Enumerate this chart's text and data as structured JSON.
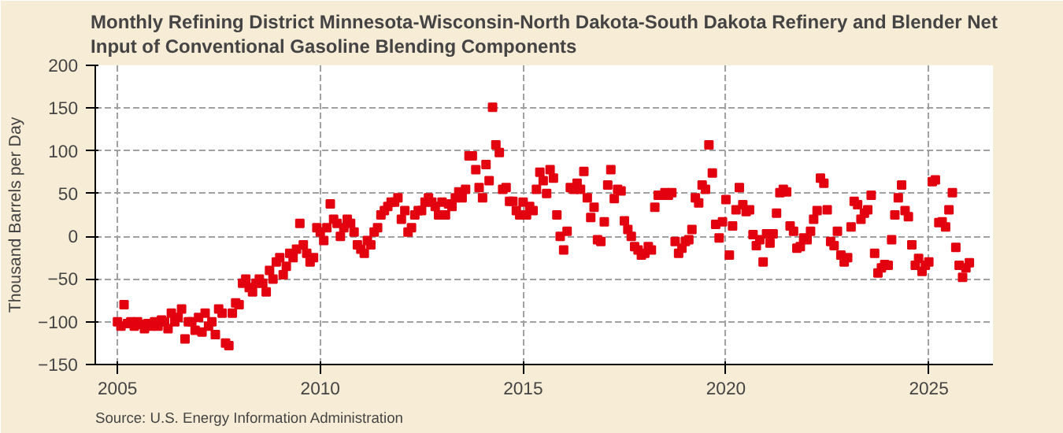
{
  "chart_data": {
    "type": "scatter",
    "title": "Monthly Refining District Minnesota-Wisconsin-North Dakota-South Dakota Refinery and Blender Net Input of Conventional Gasoline Blending Components",
    "ylabel": "Thousand Barrels per Day",
    "annotations": [
      "Source: U.S. Energy Information Administration"
    ],
    "x": [
      "2005-01",
      "2005-02",
      "2005-03",
      "2005-04",
      "2005-05",
      "2005-06",
      "2005-07",
      "2005-08",
      "2005-09",
      "2005-10",
      "2005-11",
      "2005-12",
      "2006-01",
      "2006-02",
      "2006-03",
      "2006-04",
      "2006-05",
      "2006-06",
      "2006-07",
      "2006-08",
      "2006-09",
      "2006-10",
      "2006-11",
      "2006-12",
      "2007-01",
      "2007-02",
      "2007-03",
      "2007-04",
      "2007-05",
      "2007-06",
      "2007-07",
      "2007-08",
      "2007-09",
      "2007-10",
      "2007-11",
      "2007-12",
      "2008-01",
      "2008-02",
      "2008-03",
      "2008-04",
      "2008-05",
      "2008-06",
      "2008-07",
      "2008-08",
      "2008-09",
      "2008-10",
      "2008-11",
      "2008-12",
      "2009-01",
      "2009-02",
      "2009-03",
      "2009-04",
      "2009-05",
      "2009-06",
      "2009-07",
      "2009-08",
      "2009-09",
      "2009-10",
      "2009-11",
      "2009-12",
      "2010-01",
      "2010-02",
      "2010-03",
      "2010-04",
      "2010-05",
      "2010-06",
      "2010-07",
      "2010-08",
      "2010-09",
      "2010-10",
      "2010-11",
      "2010-12",
      "2011-01",
      "2011-02",
      "2011-03",
      "2011-04",
      "2011-05",
      "2011-06",
      "2011-07",
      "2011-08",
      "2011-09",
      "2011-10",
      "2011-11",
      "2011-12",
      "2012-01",
      "2012-02",
      "2012-03",
      "2012-04",
      "2012-05",
      "2012-06",
      "2012-07",
      "2012-08",
      "2012-09",
      "2012-10",
      "2012-11",
      "2012-12",
      "2013-01",
      "2013-02",
      "2013-03",
      "2013-04",
      "2013-05",
      "2013-06",
      "2013-07",
      "2013-08",
      "2013-09",
      "2013-10",
      "2013-11",
      "2013-12",
      "2014-01",
      "2014-02",
      "2014-03",
      "2014-04",
      "2014-05",
      "2014-06",
      "2014-07",
      "2014-08",
      "2014-09",
      "2014-10",
      "2014-11",
      "2014-12",
      "2015-01",
      "2015-02",
      "2015-03",
      "2015-04",
      "2015-05",
      "2015-06",
      "2015-07",
      "2015-08",
      "2015-09",
      "2015-10",
      "2015-11",
      "2015-12",
      "2016-01",
      "2016-02",
      "2016-03",
      "2016-04",
      "2016-05",
      "2016-06",
      "2016-07",
      "2016-08",
      "2016-09",
      "2016-10",
      "2016-11",
      "2016-12",
      "2017-01",
      "2017-02",
      "2017-03",
      "2017-04",
      "2017-05",
      "2017-06",
      "2017-07",
      "2017-08",
      "2017-09",
      "2017-10",
      "2017-11",
      "2017-12",
      "2018-01",
      "2018-02",
      "2018-03",
      "2018-04",
      "2018-05",
      "2018-06",
      "2018-07",
      "2018-08",
      "2018-09",
      "2018-10",
      "2018-11",
      "2018-12",
      "2019-01",
      "2019-02",
      "2019-03",
      "2019-04",
      "2019-05",
      "2019-06",
      "2019-07",
      "2019-08",
      "2019-09",
      "2019-10",
      "2019-11",
      "2019-12",
      "2020-01",
      "2020-02",
      "2020-03",
      "2020-04",
      "2020-05",
      "2020-06",
      "2020-07",
      "2020-08",
      "2020-09",
      "2020-10",
      "2020-11",
      "2020-12",
      "2021-01",
      "2021-02",
      "2021-03",
      "2021-04",
      "2021-05",
      "2021-06",
      "2021-07",
      "2021-08",
      "2021-09",
      "2021-10",
      "2021-11",
      "2021-12",
      "2022-01",
      "2022-02",
      "2022-03",
      "2022-04",
      "2022-05",
      "2022-06",
      "2022-07",
      "2022-08",
      "2022-09",
      "2022-10",
      "2022-11",
      "2022-12",
      "2023-01",
      "2023-02",
      "2023-03",
      "2023-04",
      "2023-05",
      "2023-06",
      "2023-07",
      "2023-08",
      "2023-09",
      "2023-10",
      "2023-11",
      "2023-12",
      "2024-01",
      "2024-02",
      "2024-03",
      "2024-04",
      "2024-05",
      "2024-06",
      "2024-07",
      "2024-08",
      "2024-09",
      "2024-10",
      "2024-11",
      "2024-12",
      "2025-01",
      "2025-02",
      "2025-03",
      "2025-04",
      "2025-05",
      "2025-06",
      "2025-07",
      "2025-08",
      "2025-09",
      "2025-10",
      "2025-11",
      "2025-12",
      "2026-01"
    ],
    "marker": "square",
    "grid": true,
    "xlim": [
      "2004-06-15",
      "2026-08-01"
    ],
    "xticks": [
      {
        "value": "2005-01-01",
        "label": "2005"
      },
      {
        "value": "2010-01-01",
        "label": "2010"
      },
      {
        "value": "2015-01-01",
        "label": "2015"
      },
      {
        "value": "2020-01-01",
        "label": "2020"
      },
      {
        "value": "2025-01-01",
        "label": "2025"
      }
    ],
    "ylim": [
      -150,
      200
    ],
    "yticks": [
      -150,
      -100,
      -50,
      0,
      50,
      100,
      150,
      200
    ],
    "series": [
      {
        "color": "#e3000f",
        "values": [
          -100,
          -105,
          -80,
          -102,
          -100,
          -105,
          -100,
          -103,
          -108,
          -102,
          -105,
          -100,
          -105,
          -98,
          -100,
          -108,
          -90,
          -100,
          -95,
          -85,
          -120,
          -100,
          -100,
          -110,
          -95,
          -112,
          -90,
          -105,
          -100,
          -115,
          -85,
          -90,
          -125,
          -128,
          -90,
          -78,
          -80,
          -55,
          -50,
          -60,
          -65,
          -55,
          -50,
          -55,
          -65,
          -40,
          -50,
          -30,
          -25,
          -45,
          -35,
          -20,
          -25,
          -15,
          15,
          -10,
          -20,
          -30,
          -25,
          10,
          5,
          -5,
          10,
          38,
          20,
          15,
          0,
          10,
          20,
          15,
          5,
          -10,
          -15,
          -20,
          -5,
          -10,
          5,
          10,
          25,
          30,
          35,
          40,
          40,
          45,
          20,
          30,
          5,
          10,
          25,
          30,
          30,
          40,
          45,
          40,
          35,
          25,
          40,
          25,
          38,
          35,
          45,
          52,
          45,
          55,
          94,
          94,
          78,
          57,
          45,
          84,
          65,
          151,
          107,
          98,
          55,
          57,
          41,
          41,
          30,
          25,
          40,
          25,
          35,
          30,
          55,
          75,
          65,
          50,
          78,
          68,
          25,
          0,
          -16,
          6,
          57,
          55,
          62,
          55,
          76,
          45,
          22,
          34,
          -4,
          -6,
          17,
          60,
          78,
          44,
          55,
          53,
          18,
          8,
          0,
          -12,
          -16,
          -22,
          -20,
          -12,
          -16,
          34,
          48,
          48,
          51,
          48,
          51,
          -6,
          -20,
          -14,
          -6,
          -4,
          8,
          45,
          39,
          60,
          55,
          107,
          74,
          14,
          -2,
          17,
          43,
          -22,
          12,
          31,
          57,
          37,
          29,
          31,
          2,
          -11,
          -4,
          -30,
          3,
          -8,
          3,
          27,
          51,
          55,
          52,
          12,
          6,
          -14,
          -12,
          -2,
          -4,
          6,
          20,
          30,
          68,
          62,
          31,
          -6,
          -11,
          6,
          -22,
          -30,
          -25,
          11,
          41,
          37,
          20,
          27,
          31,
          48,
          -20,
          -43,
          -37,
          -33,
          -34,
          -4,
          25,
          45,
          60,
          30,
          23,
          -10,
          -34,
          -26,
          -41,
          -34,
          -30,
          64,
          66,
          16,
          17,
          11,
          31,
          51,
          -13,
          -34,
          -48,
          -37,
          -31
        ]
      }
    ]
  }
}
